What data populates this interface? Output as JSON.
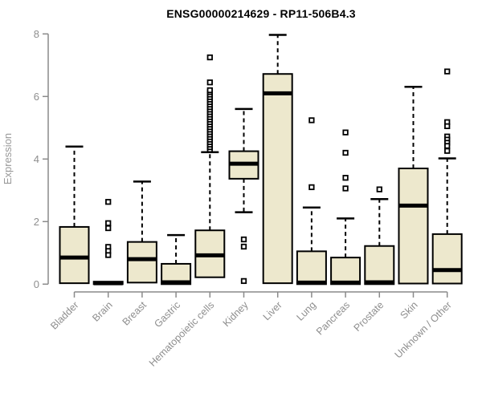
{
  "chart_data": {
    "type": "boxplot",
    "title": "ENSG00000214629 - RP11-506B4.3",
    "ylabel": "Expression",
    "xlabel": "",
    "ylim": [
      0,
      8
    ],
    "yticks": [
      0,
      2,
      4,
      6,
      8
    ],
    "grid": false,
    "legend": null,
    "box_fill": "#EDE8CD",
    "box_stroke": "#000000",
    "axis_color": "#8A8A8A",
    "label_color": "#8E8E8E",
    "title_color": "#000000",
    "categories": [
      "Bladder",
      "Brain",
      "Breast",
      "Gastric",
      "Hematopoietic cells",
      "Kidney",
      "Liver",
      "Lung",
      "Pancreas",
      "Prostate",
      "Skin",
      "Unknown / Other"
    ],
    "boxes": [
      {
        "label": "Bladder",
        "q1": 0.03,
        "median": 0.85,
        "q3": 1.83,
        "whisker_low": null,
        "whisker_high": 4.4,
        "outliers": []
      },
      {
        "label": "Brain",
        "q1": 0.0,
        "median": 0.03,
        "q3": 0.08,
        "whisker_low": null,
        "whisker_high": null,
        "outliers": [
          2.63,
          1.95,
          1.79,
          1.19,
          1.06,
          0.93
        ]
      },
      {
        "label": "Breast",
        "q1": 0.05,
        "median": 0.8,
        "q3": 1.35,
        "whisker_low": null,
        "whisker_high": 3.28,
        "outliers": []
      },
      {
        "label": "Gastric",
        "q1": 0.0,
        "median": 0.06,
        "q3": 0.65,
        "whisker_low": null,
        "whisker_high": 1.57,
        "outliers": []
      },
      {
        "label": "Hematopoietic cells",
        "q1": 0.22,
        "median": 0.92,
        "q3": 1.72,
        "whisker_low": null,
        "whisker_high": 4.22,
        "outliers": [
          4.3,
          4.38,
          4.46,
          4.54,
          4.62,
          4.7,
          4.78,
          4.86,
          4.94,
          5.02,
          5.1,
          5.18,
          5.26,
          5.34,
          5.42,
          5.5,
          5.58,
          5.66,
          5.74,
          5.82,
          5.9,
          5.98,
          6.06,
          6.14,
          6.2,
          6.45,
          7.25
        ]
      },
      {
        "label": "Kidney",
        "q1": 3.37,
        "median": 3.85,
        "q3": 4.25,
        "whisker_low": 2.3,
        "whisker_high": 5.6,
        "outliers": [
          1.43,
          1.2,
          0.1
        ]
      },
      {
        "label": "Liver",
        "q1": 0.03,
        "median": 6.1,
        "q3": 6.72,
        "whisker_low": null,
        "whisker_high": 7.97,
        "outliers": []
      },
      {
        "label": "Lung",
        "q1": 0.0,
        "median": 0.05,
        "q3": 1.05,
        "whisker_low": null,
        "whisker_high": 2.45,
        "outliers": [
          5.24,
          3.1
        ]
      },
      {
        "label": "Pancreas",
        "q1": 0.0,
        "median": 0.05,
        "q3": 0.85,
        "whisker_low": null,
        "whisker_high": 2.1,
        "outliers": [
          4.85,
          4.2,
          3.4,
          3.06
        ]
      },
      {
        "label": "Prostate",
        "q1": 0.0,
        "median": 0.06,
        "q3": 1.22,
        "whisker_low": null,
        "whisker_high": 2.72,
        "outliers": [
          3.03
        ]
      },
      {
        "label": "Skin",
        "q1": 0.02,
        "median": 2.51,
        "q3": 3.7,
        "whisker_low": null,
        "whisker_high": 6.31,
        "outliers": []
      },
      {
        "label": "Unknown / Other",
        "q1": 0.02,
        "median": 0.45,
        "q3": 1.6,
        "whisker_low": null,
        "whisker_high": 4.02,
        "outliers": [
          6.8,
          5.18,
          5.05,
          4.72,
          4.62,
          4.52,
          4.42,
          4.26
        ]
      }
    ]
  }
}
